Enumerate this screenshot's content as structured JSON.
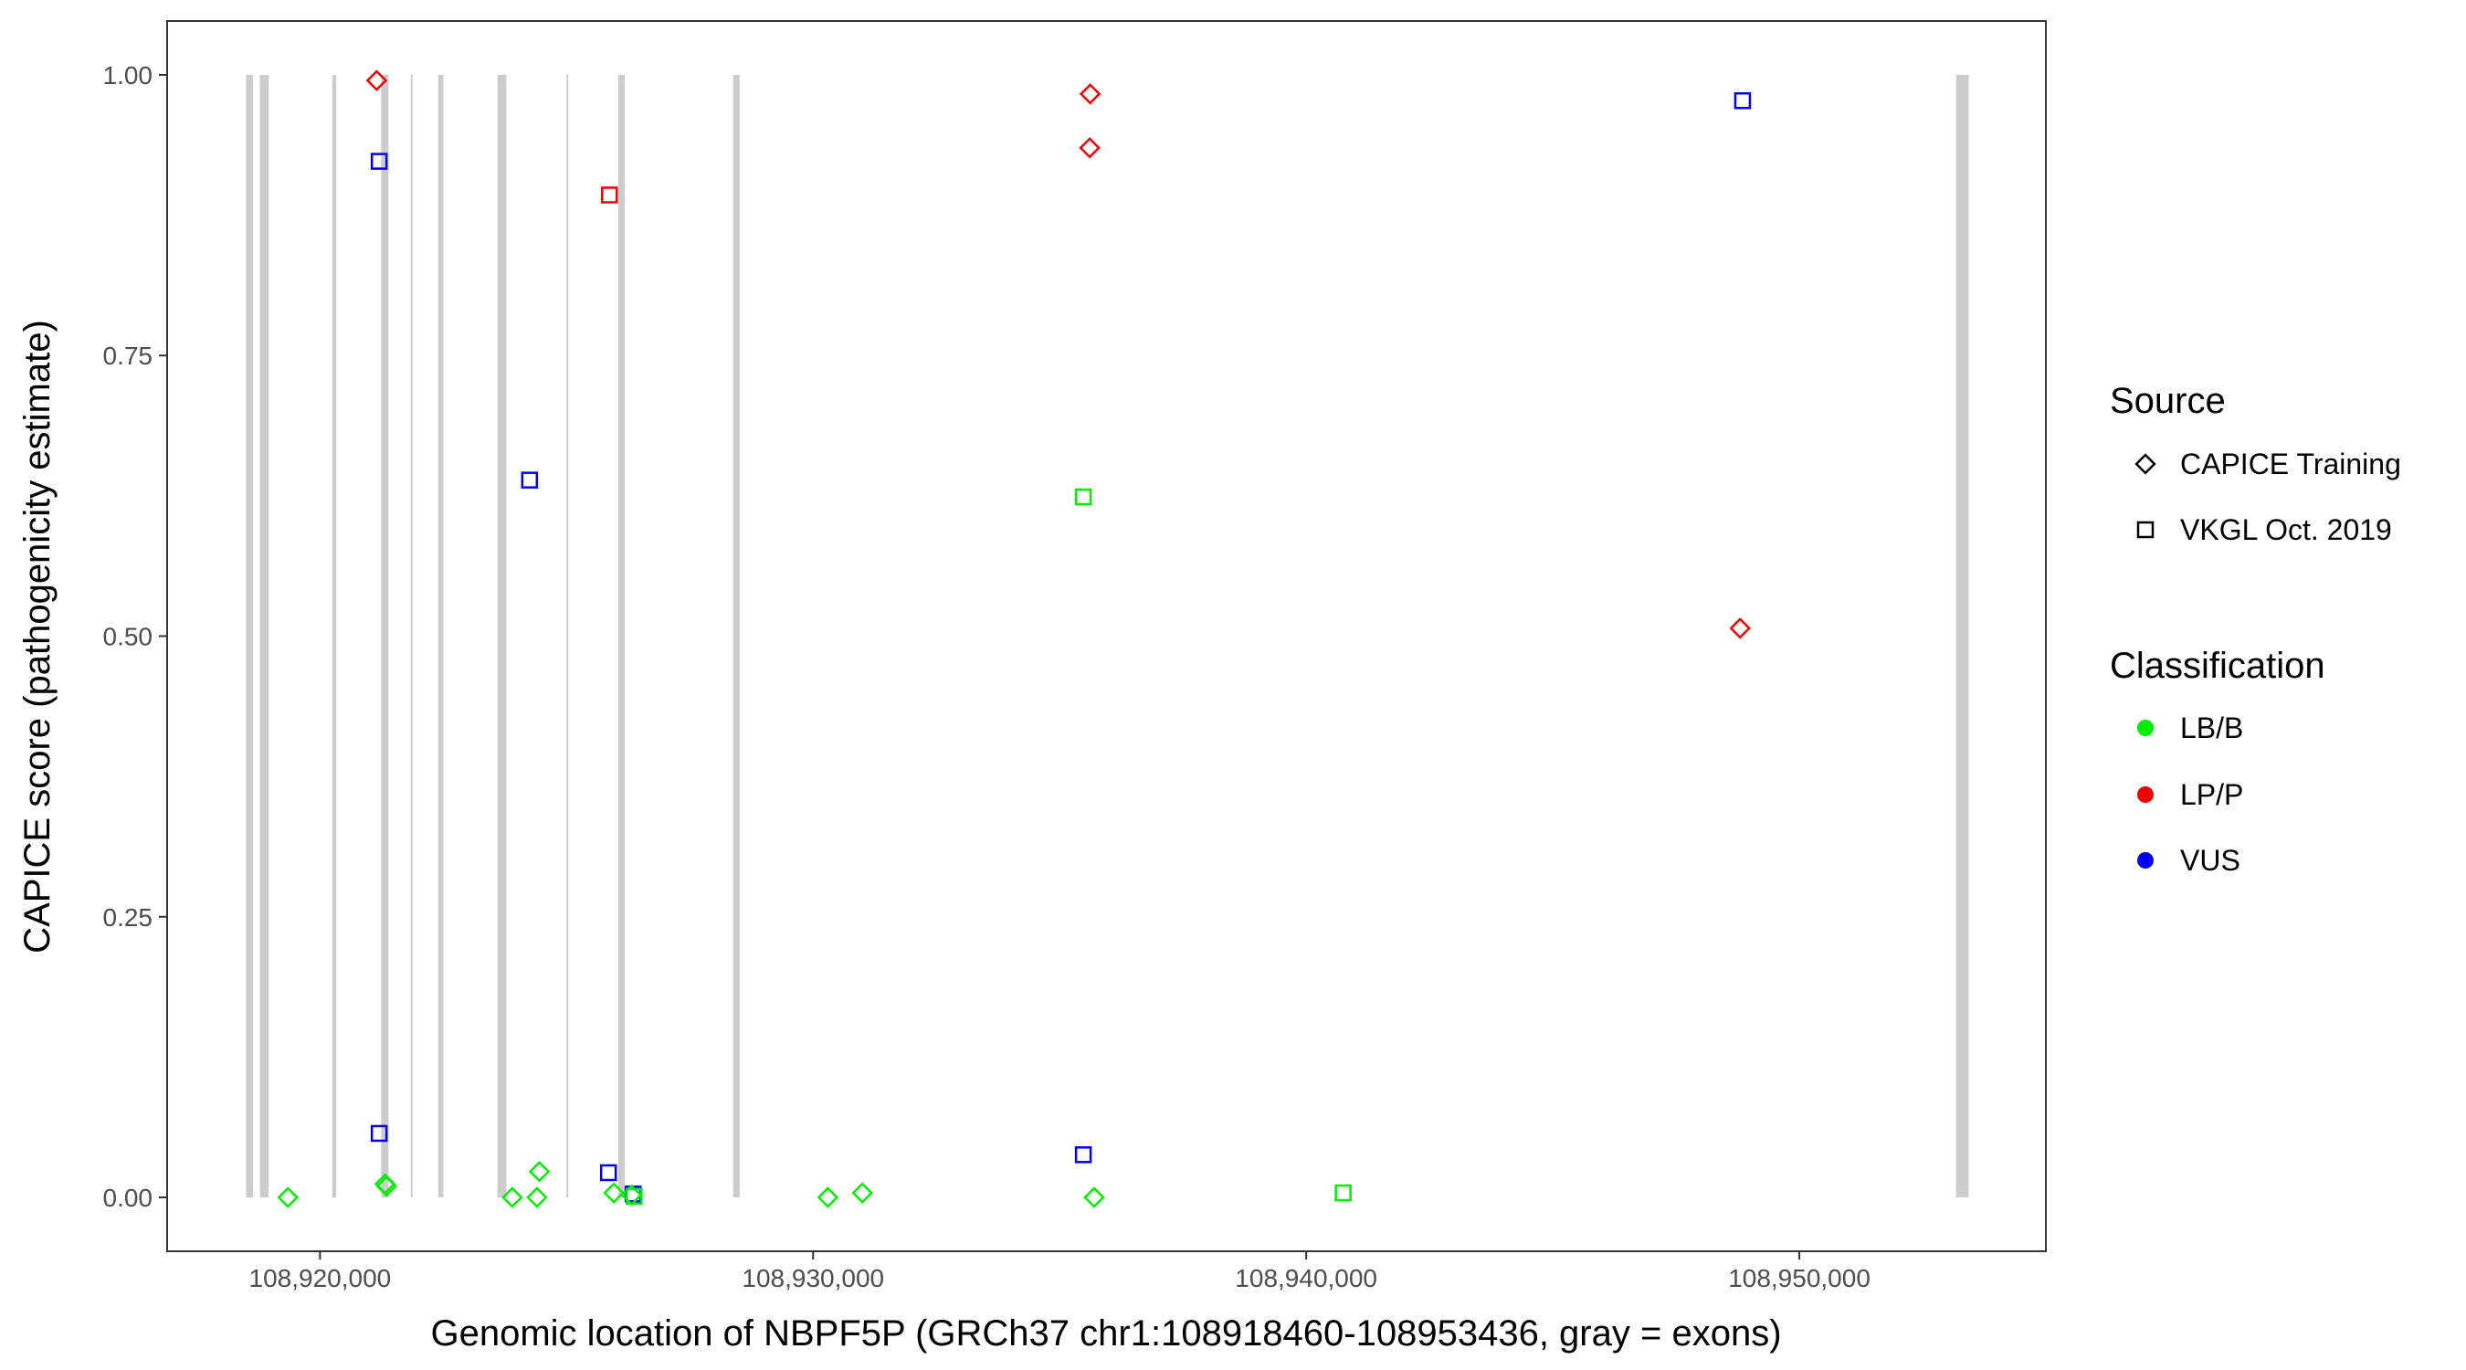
{
  "chart_data": {
    "type": "scatter",
    "xlabel": "Genomic location of NBPF5P (GRCh37 chr1:108918460-108953436, gray = exons)",
    "ylabel": "CAPICE score (pathogenicity estimate)",
    "xlim": [
      108916900,
      108955000
    ],
    "ylim": [
      -0.048,
      1.048
    ],
    "x_ticks": [
      108920000,
      108930000,
      108940000,
      108950000
    ],
    "x_tick_labels": [
      "108,920,000",
      "108,930,000",
      "108,940,000",
      "108,950,000"
    ],
    "y_ticks": [
      0,
      0.25,
      0.5,
      0.75,
      1
    ],
    "y_tick_labels": [
      "0.00",
      "0.25",
      "0.50",
      "0.75",
      "1.00"
    ],
    "exons": [
      {
        "start": 108918500,
        "end": 108918640
      },
      {
        "start": 108918780,
        "end": 108918960
      },
      {
        "start": 108920250,
        "end": 108920330
      },
      {
        "start": 108921240,
        "end": 108921390
      },
      {
        "start": 108921840,
        "end": 108921870
      },
      {
        "start": 108922400,
        "end": 108922500
      },
      {
        "start": 108923600,
        "end": 108923780
      },
      {
        "start": 108925000,
        "end": 108925030
      },
      {
        "start": 108926050,
        "end": 108926180
      },
      {
        "start": 108928380,
        "end": 108928510
      },
      {
        "start": 108953180,
        "end": 108953436
      }
    ],
    "legend": {
      "position": "right",
      "source_title": "Source",
      "source_items": [
        {
          "label": "CAPICE Training",
          "shape": "diamond"
        },
        {
          "label": "VKGL Oct. 2019",
          "shape": "square"
        }
      ],
      "class_title": "Classification",
      "class_items": [
        {
          "label": "LB/B",
          "color": "#00ee00"
        },
        {
          "label": "LP/P",
          "color": "#ee0000"
        },
        {
          "label": "VUS",
          "color": "#0000ee"
        }
      ]
    },
    "series": [
      {
        "source": "CAPICE Training",
        "class": "LP/P",
        "points": [
          [
            108921150,
            0.995
          ],
          [
            108935620,
            0.983
          ],
          [
            108935610,
            0.935
          ],
          [
            108948800,
            0.507
          ]
        ]
      },
      {
        "source": "VKGL Oct. 2019",
        "class": "LP/P",
        "points": [
          [
            108925870,
            0.893
          ]
        ]
      },
      {
        "source": "VKGL Oct. 2019",
        "class": "VUS",
        "points": [
          [
            108921200,
            0.923
          ],
          [
            108924250,
            0.639
          ],
          [
            108948850,
            0.977
          ],
          [
            108921200,
            0.057
          ],
          [
            108925850,
            0.022
          ],
          [
            108926350,
            0.003
          ],
          [
            108935480,
            0.038
          ]
        ]
      },
      {
        "source": "VKGL Oct. 2019",
        "class": "LB/B",
        "points": [
          [
            108935480,
            0.624
          ],
          [
            108926370,
            0.001
          ],
          [
            108940750,
            0.004
          ]
        ]
      },
      {
        "source": "CAPICE Training",
        "class": "LB/B",
        "points": [
          [
            108919350,
            0.0
          ],
          [
            108921320,
            0.012
          ],
          [
            108921350,
            0.01
          ],
          [
            108924450,
            0.023
          ],
          [
            108923900,
            0.0
          ],
          [
            108924400,
            0.0
          ],
          [
            108925960,
            0.004
          ],
          [
            108926320,
            0.002
          ],
          [
            108930300,
            0.0
          ],
          [
            108931000,
            0.004
          ],
          [
            108935700,
            0.0
          ]
        ]
      }
    ]
  }
}
